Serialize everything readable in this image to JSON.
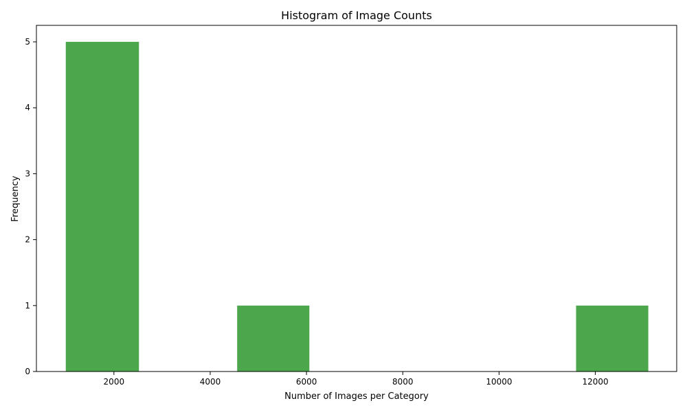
{
  "chart_data": {
    "type": "bar",
    "title": "Histogram of Image Counts",
    "xlabel": "Number of Images per Category",
    "ylabel": "Frequency",
    "xlim": [
      390,
      13690
    ],
    "ylim": [
      0,
      5.25
    ],
    "xticks": [
      2000,
      4000,
      6000,
      8000,
      10000,
      12000
    ],
    "yticks": [
      0,
      1,
      2,
      3,
      4,
      5
    ],
    "grid": false,
    "bins": [
      {
        "x0": 1000,
        "x1": 2520,
        "count": 5
      },
      {
        "x0": 2520,
        "x1": 4040,
        "count": 0
      },
      {
        "x0": 4560,
        "x1": 6060,
        "count": 1
      },
      {
        "x0": 6060,
        "x1": 7580,
        "count": 0
      },
      {
        "x0": 7580,
        "x1": 9100,
        "count": 0
      },
      {
        "x0": 9100,
        "x1": 10620,
        "count": 0
      },
      {
        "x0": 11600,
        "x1": 13100,
        "count": 1
      }
    ],
    "bar_color": "#4ca64c"
  }
}
